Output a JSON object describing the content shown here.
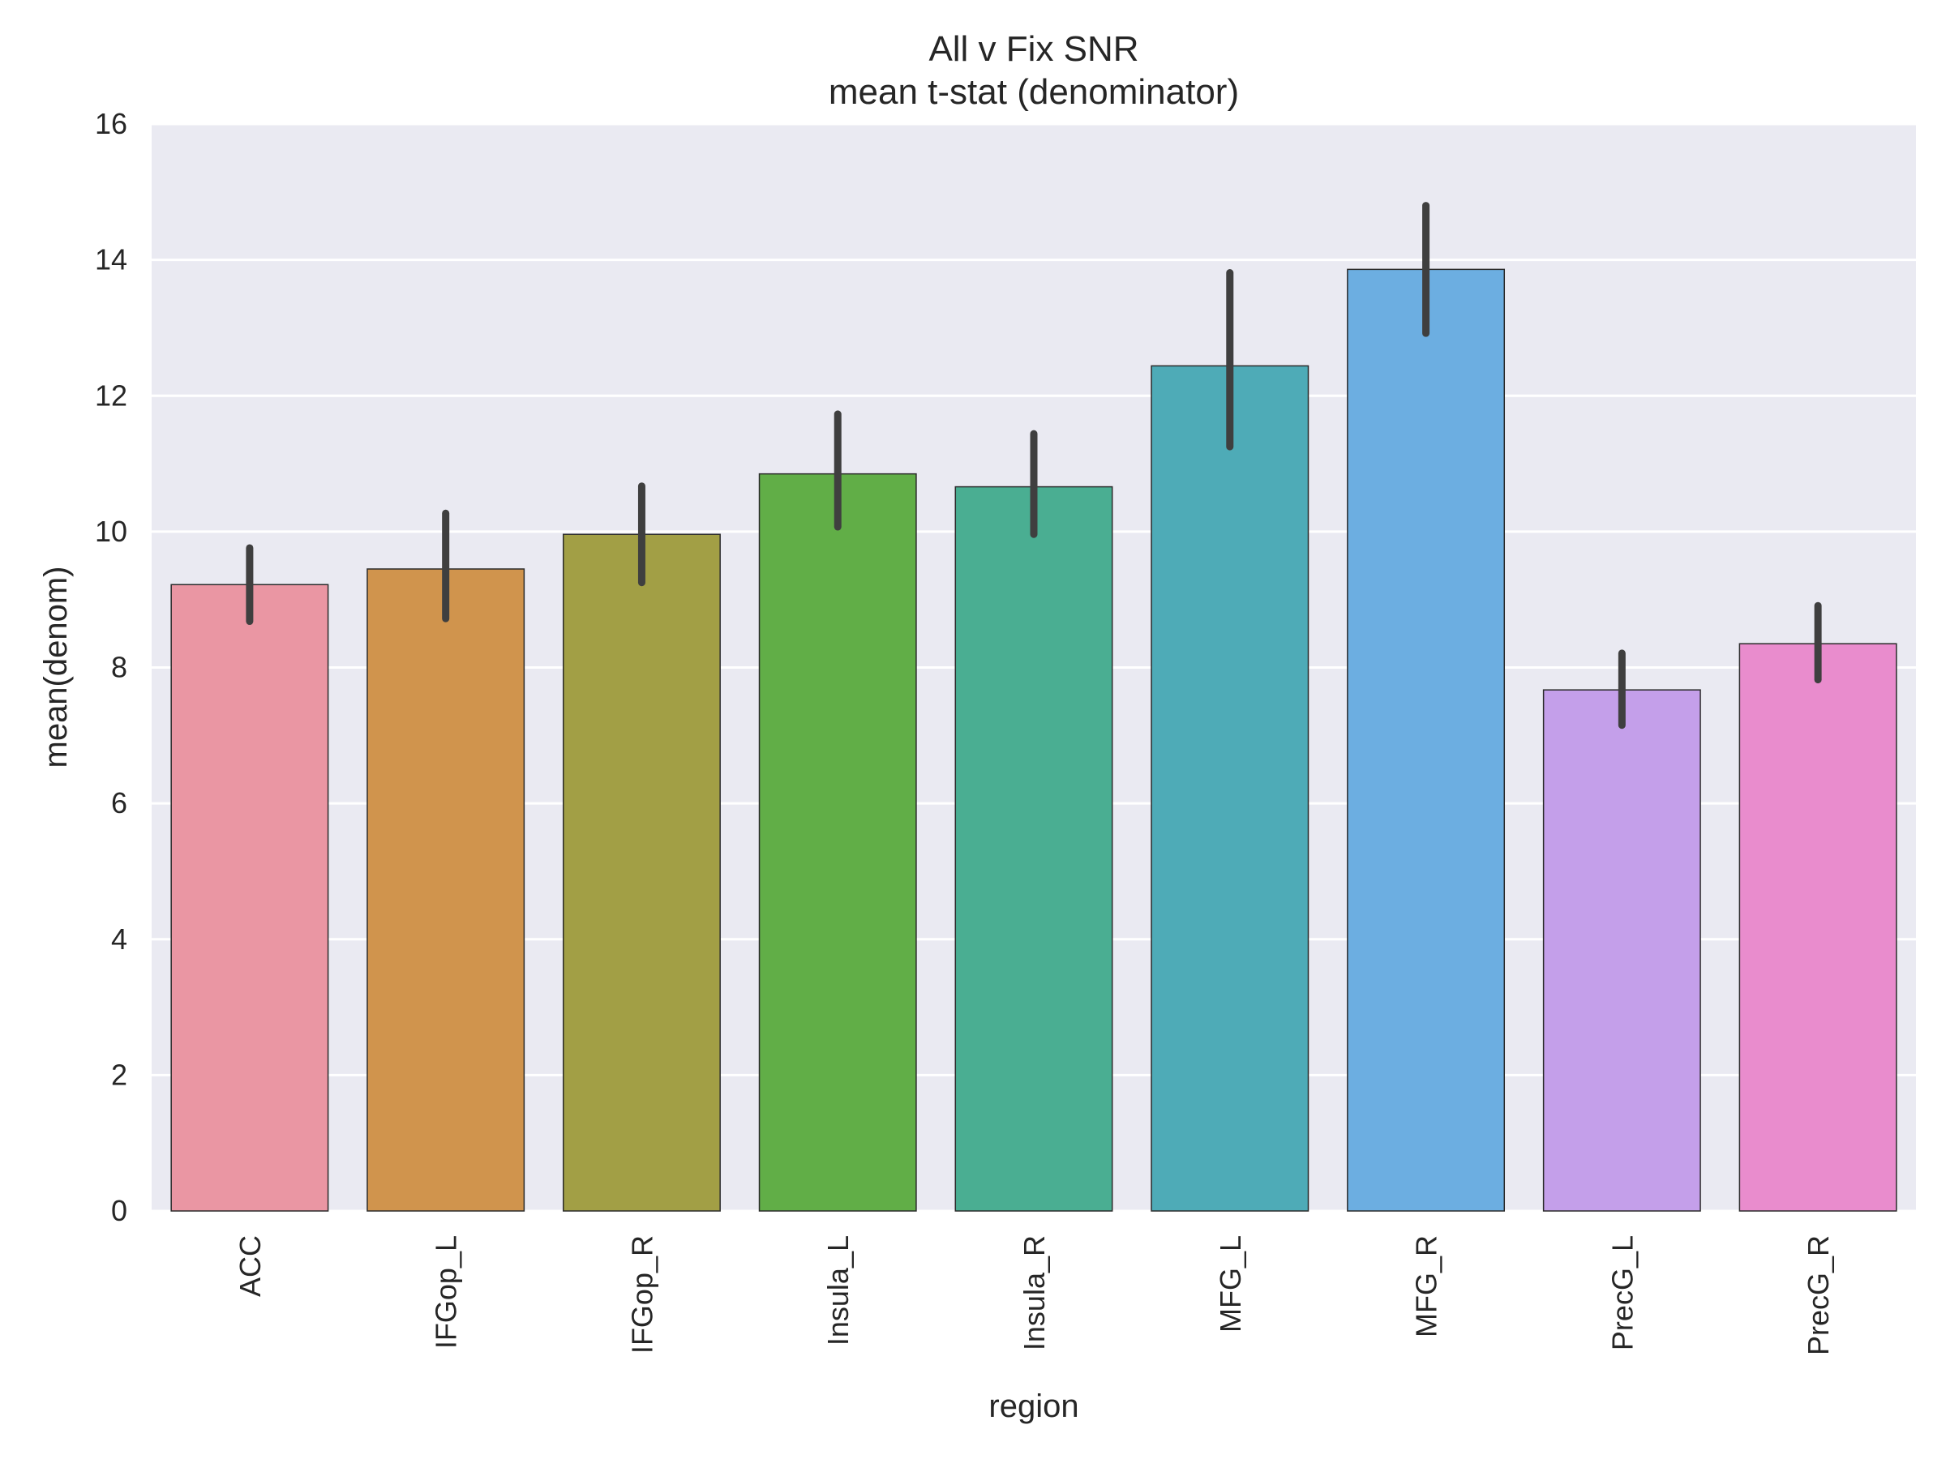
{
  "chart_data": {
    "type": "bar",
    "title": "All v Fix SNR",
    "subtitle": "mean t-stat (denominator)",
    "xlabel": "region",
    "ylabel": "mean(denom)",
    "ylim": [
      0,
      16
    ],
    "yticks": [
      0,
      2,
      4,
      6,
      8,
      10,
      12,
      14,
      16
    ],
    "grid": true,
    "categories": [
      "ACC",
      "IFGop_L",
      "IFGop_R",
      "Insula_L",
      "Insula_R",
      "MFG_L",
      "MFG_R",
      "PrecG_L",
      "PrecG_R"
    ],
    "values": [
      9.22,
      9.45,
      9.96,
      10.85,
      10.66,
      12.44,
      13.86,
      7.67,
      8.35
    ],
    "error_low": [
      8.68,
      8.72,
      9.25,
      10.07,
      9.96,
      11.25,
      12.92,
      7.15,
      7.82
    ],
    "error_high": [
      9.76,
      10.27,
      10.67,
      11.73,
      11.44,
      13.81,
      14.8,
      8.21,
      8.91
    ],
    "colors": [
      "#ea96a3",
      "#d0944d",
      "#a29f45",
      "#61ae47",
      "#4aae92",
      "#4eabb7",
      "#6caee1",
      "#c49fea",
      "#e98ccd"
    ],
    "background_color": "#eaeaf2",
    "errorbar_color": "#3f3f3f"
  }
}
